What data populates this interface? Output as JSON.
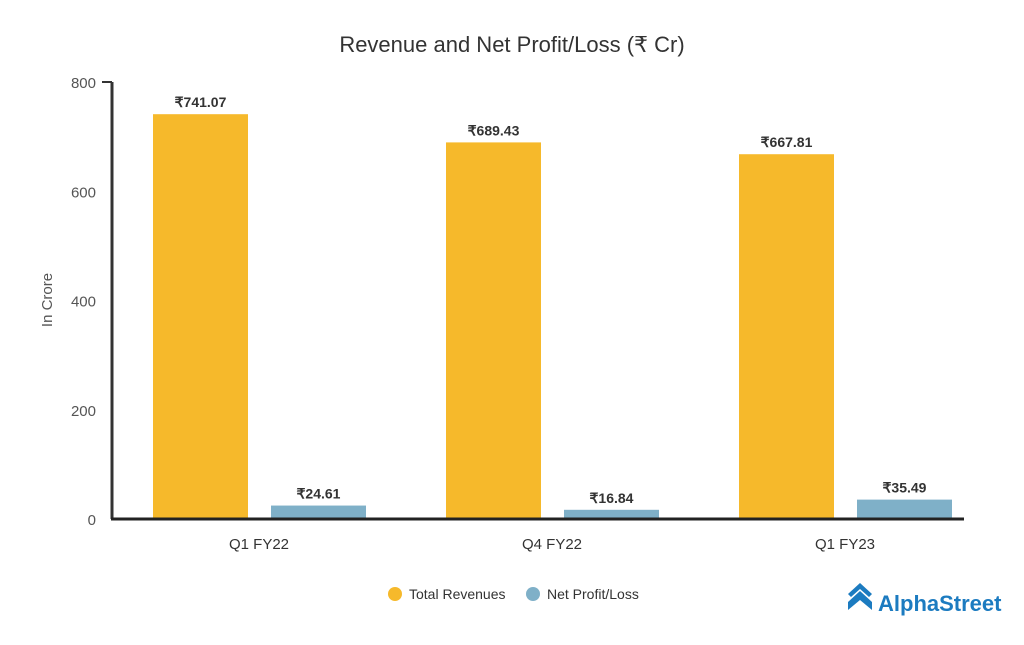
{
  "chart_data": {
    "type": "bar",
    "title": "Revenue and Net Profit/Loss (₹ Cr)",
    "xlabel": "",
    "ylabel": "In Crore",
    "ylim": [
      0,
      800
    ],
    "yticks": [
      0,
      200,
      400,
      600,
      800
    ],
    "categories": [
      "Q1 FY22",
      "Q4 FY22",
      "Q1 FY23"
    ],
    "series": [
      {
        "name": "Total Revenues",
        "color": "#F6B92B",
        "values": [
          741.07,
          689.43,
          667.81
        ],
        "labels": [
          "₹741.07",
          "₹689.43",
          "₹667.81"
        ]
      },
      {
        "name": "Net Profit/Loss",
        "color": "#7FB0C8",
        "values": [
          24.61,
          16.84,
          35.49
        ],
        "labels": [
          "₹24.61",
          "₹16.84",
          "₹35.49"
        ]
      }
    ],
    "grid": false,
    "legend": "bottom-center"
  },
  "brand": {
    "name": "AlphaStreet",
    "color": "#1C7BC0"
  }
}
